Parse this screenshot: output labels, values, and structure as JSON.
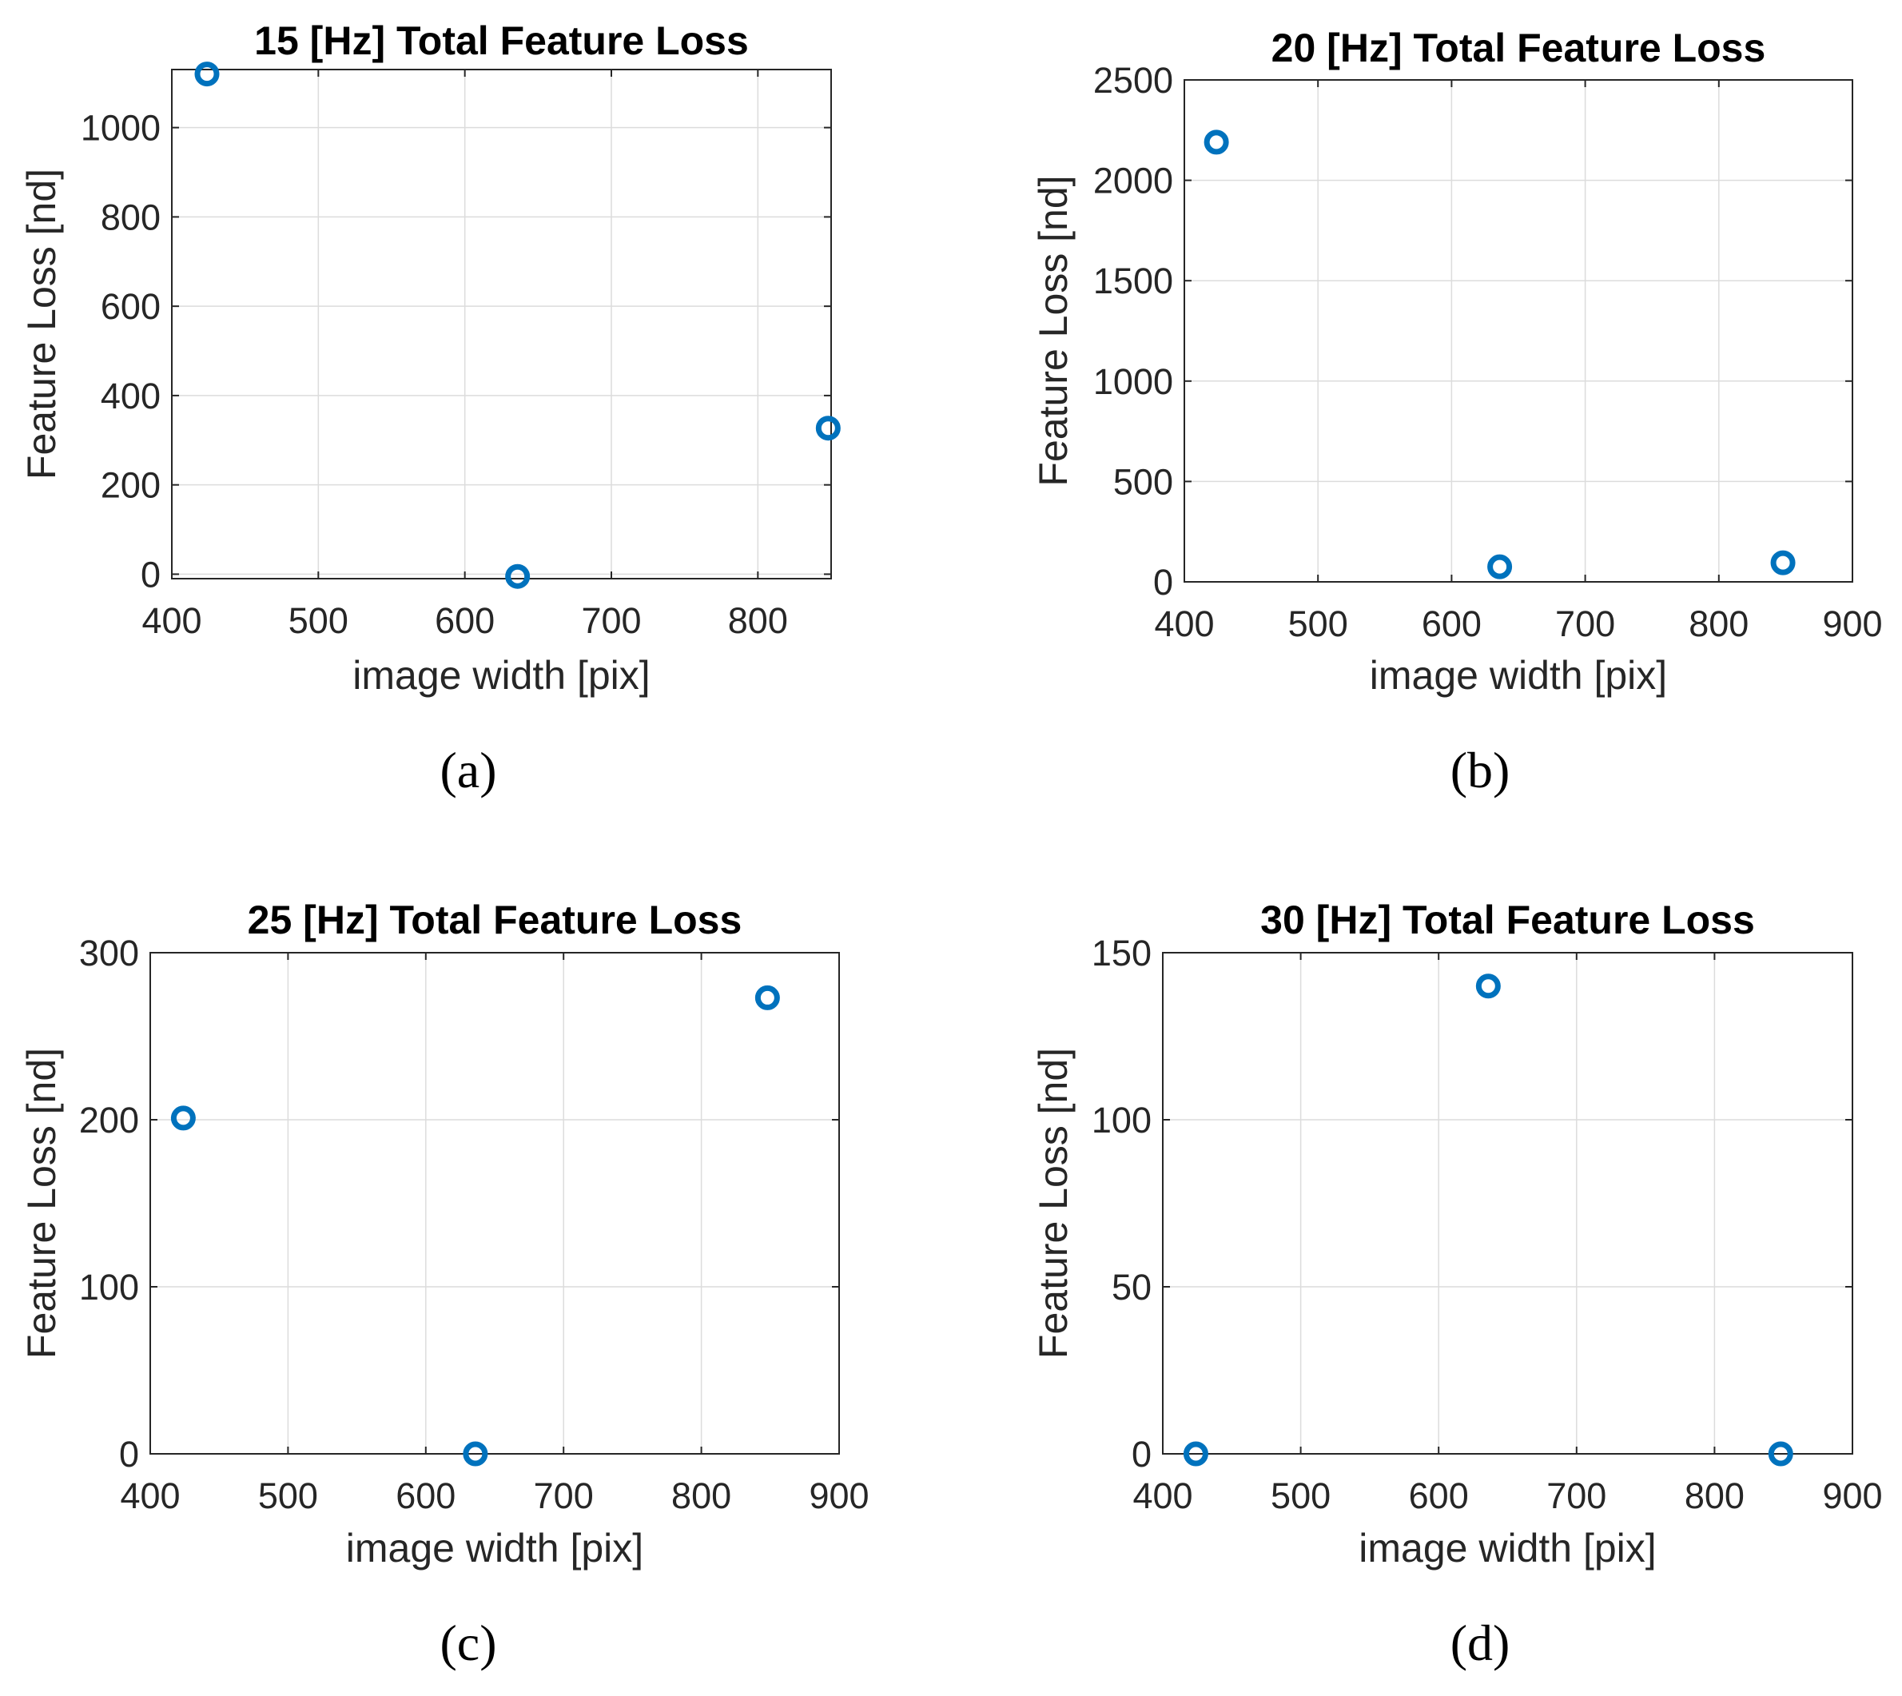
{
  "chart_data": [
    {
      "type": "scatter",
      "panel_label": "(a)",
      "title": "15 [Hz] Total Feature Loss",
      "xlabel": "image width [pix]",
      "ylabel": "Feature Loss [nd]",
      "xlim": [
        400,
        850
      ],
      "ylim": [
        -10,
        1130
      ],
      "xticks": [
        400,
        500,
        600,
        700,
        800
      ],
      "yticks": [
        0,
        200,
        400,
        600,
        800,
        1000
      ],
      "grid": true,
      "marker_color": "#0072BD",
      "series": [
        {
          "name": "Total Feature Loss",
          "x": [
            424,
            636,
            848
          ],
          "y": [
            1120,
            -5,
            327
          ]
        }
      ]
    },
    {
      "type": "scatter",
      "panel_label": "(b)",
      "title": "20 [Hz] Total Feature Loss",
      "xlabel": "image width [pix]",
      "ylabel": "Feature Loss [nd]",
      "xlim": [
        400,
        900
      ],
      "ylim": [
        0,
        2500
      ],
      "xticks": [
        400,
        500,
        600,
        700,
        800,
        900
      ],
      "yticks": [
        0,
        500,
        1000,
        1500,
        2000,
        2500
      ],
      "grid": true,
      "marker_color": "#0072BD",
      "series": [
        {
          "name": "Total Feature Loss",
          "x": [
            424,
            636,
            848
          ],
          "y": [
            2190,
            75,
            95
          ]
        }
      ]
    },
    {
      "type": "scatter",
      "panel_label": "(c)",
      "title": "25 [Hz] Total Feature Loss",
      "xlabel": "image width [pix]",
      "ylabel": "Feature Loss [nd]",
      "xlim": [
        400,
        900
      ],
      "ylim": [
        0,
        300
      ],
      "xticks": [
        400,
        500,
        600,
        700,
        800,
        900
      ],
      "yticks": [
        0,
        100,
        200,
        300
      ],
      "grid": true,
      "marker_color": "#0072BD",
      "series": [
        {
          "name": "Total Feature Loss",
          "x": [
            424,
            636,
            848
          ],
          "y": [
            201,
            0,
            273
          ]
        }
      ]
    },
    {
      "type": "scatter",
      "panel_label": "(d)",
      "title": "30 [Hz] Total Feature Loss",
      "xlabel": "image width [pix]",
      "ylabel": "Feature Loss [nd]",
      "xlim": [
        400,
        900
      ],
      "ylim": [
        0,
        150
      ],
      "xticks": [
        400,
        500,
        600,
        700,
        800,
        900
      ],
      "yticks": [
        0,
        50,
        100,
        150
      ],
      "grid": true,
      "marker_color": "#0072BD",
      "series": [
        {
          "name": "Total Feature Loss",
          "x": [
            424,
            636,
            848
          ],
          "y": [
            0,
            140,
            0
          ]
        }
      ]
    }
  ]
}
